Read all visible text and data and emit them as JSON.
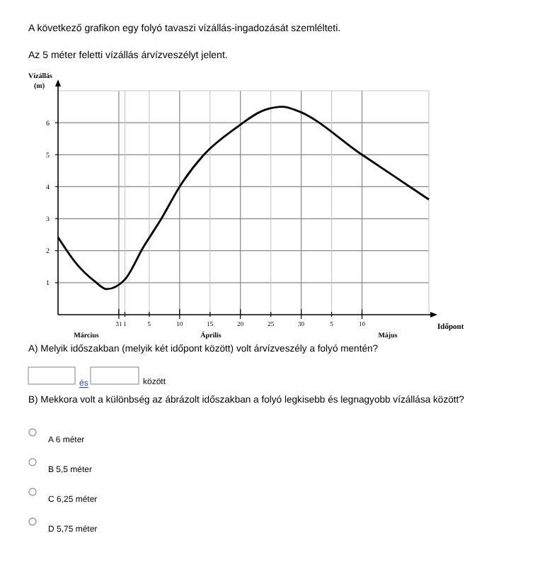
{
  "chart_data": {
    "type": "line",
    "title": "A következő grafikon egy folyó tavaszi vízállás-ingadozását szemlélteti.",
    "subtitle": "Az 5 méter feletti vízállás árvízveszélyt jelent.",
    "xlabel": "Időpont",
    "ylabel": "Vízállás (m)",
    "x": [
      "--03-21",
      "--03-24",
      "--03-27",
      "--03-29",
      "--04-01",
      "--04-04",
      "--04-07",
      "--04-10",
      "--04-14",
      "--04-19",
      "--04-24",
      "--04-27",
      "--04-29",
      "--05-10",
      "--05-21"
    ],
    "series": [
      {
        "color": "#000000",
        "values": [
          2.42,
          1.6,
          1.05,
          0.8,
          1.1,
          2.1,
          3.0,
          4.0,
          5.0,
          5.8,
          6.4,
          6.5,
          6.4,
          5.0,
          3.6
        ]
      }
    ],
    "xlim": [
      "--03-21",
      "--05-21"
    ],
    "xticks": [
      {
        "value": "--03-31",
        "label": "31"
      },
      {
        "value": "--04-01",
        "label": "1"
      },
      {
        "value": "--04-05",
        "label": "5"
      },
      {
        "value": "--04-10",
        "label": "10"
      },
      {
        "value": "--04-15",
        "label": "15"
      },
      {
        "value": "--04-20",
        "label": "20"
      },
      {
        "value": "--04-25",
        "label": "25"
      },
      {
        "value": "--04-30",
        "label": "30"
      },
      {
        "value": "--05-05",
        "label": "5"
      },
      {
        "value": "--05-10",
        "label": "10"
      }
    ],
    "ylim": [
      0,
      7
    ],
    "yticks": [
      1,
      2,
      3,
      4,
      5,
      6
    ],
    "grid": true,
    "line_style": "solid",
    "marker": "none",
    "annotations": [
      "Március",
      "Április",
      "Május",
      "A) Melyik időszakban (melyik két időpont között) volt árvízveszély a folyó mentén?",
      "és",
      "között",
      "B) Mekkora volt a különbség az ábrázolt időszakban a folyó legkisebb és legnagyobb vízállása között?",
      "A  6 méter",
      "B  5,5 méter",
      "C  6,25 méter",
      "D  5,75 méter"
    ]
  }
}
